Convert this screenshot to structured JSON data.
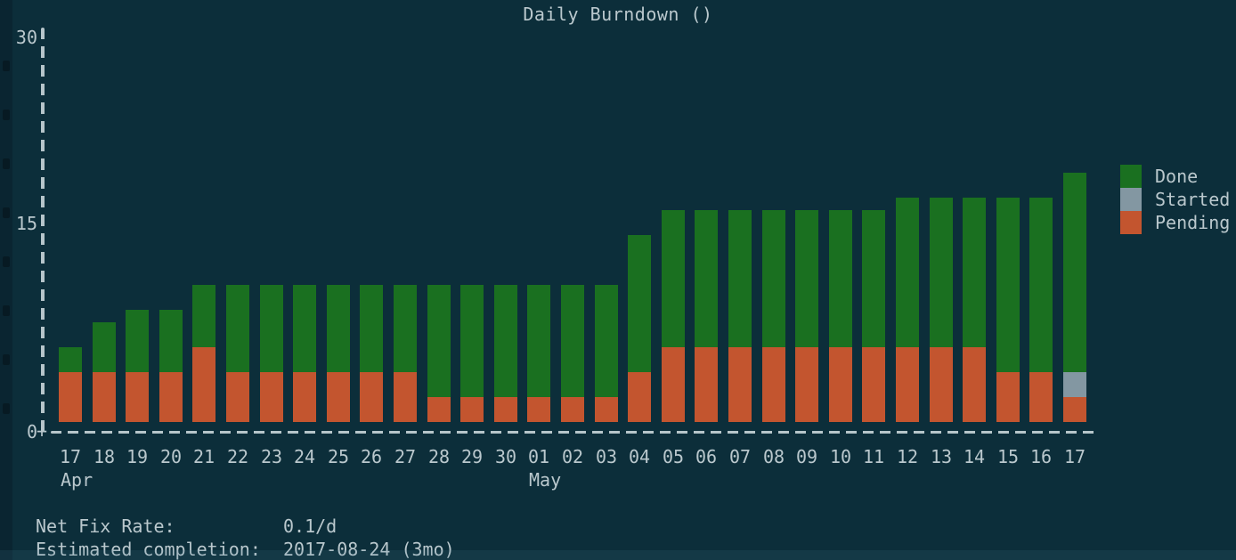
{
  "title": "Daily Burndown ()",
  "legend": {
    "items": [
      {
        "label": "Done",
        "color": "#1a7020"
      },
      {
        "label": "Started",
        "color": "#8397a2"
      },
      {
        "label": "Pending",
        "color": "#c3552f"
      }
    ]
  },
  "y_axis": {
    "ticks": [
      {
        "label": "30",
        "value": 30
      },
      {
        "label": "15",
        "value": 15
      },
      {
        "label": "0",
        "value": 0
      }
    ]
  },
  "x_axis": {
    "day_labels": [
      "17",
      "18",
      "19",
      "20",
      "21",
      "22",
      "23",
      "24",
      "25",
      "26",
      "27",
      "28",
      "29",
      "30",
      "01",
      "02",
      "03",
      "04",
      "05",
      "06",
      "07",
      "08",
      "09",
      "10",
      "11",
      "12",
      "13",
      "14",
      "15",
      "16",
      "17"
    ],
    "month_labels": [
      {
        "label": "Apr",
        "day_index": 0
      },
      {
        "label": "May",
        "day_index": 14
      }
    ]
  },
  "stats": {
    "rows": [
      {
        "label": "Net Fix Rate:",
        "value": "0.1/d"
      },
      {
        "label": "Estimated completion:",
        "value": "2017-08-24 (3mo)"
      }
    ]
  },
  "colors": {
    "background": "#0c2e3a",
    "text": "#bac8cd",
    "axis": "#b6c5ca",
    "done": "#1a7020",
    "started": "#8397a2",
    "pending": "#c3552f"
  },
  "chart_data": {
    "type": "bar",
    "stacked": true,
    "title": "Daily Burndown ()",
    "categories": [
      "Apr 17",
      "Apr 18",
      "Apr 19",
      "Apr 20",
      "Apr 21",
      "Apr 22",
      "Apr 23",
      "Apr 24",
      "Apr 25",
      "Apr 26",
      "Apr 27",
      "Apr 28",
      "Apr 29",
      "Apr 30",
      "May 01",
      "May 02",
      "May 03",
      "May 04",
      "May 05",
      "May 06",
      "May 07",
      "May 08",
      "May 09",
      "May 10",
      "May 11",
      "May 12",
      "May 13",
      "May 14",
      "May 15",
      "May 16",
      "May 17"
    ],
    "series": [
      {
        "name": "Pending",
        "color": "#c3552f",
        "values": [
          4,
          4,
          4,
          4,
          6,
          4,
          4,
          4,
          4,
          4,
          4,
          2,
          2,
          2,
          2,
          2,
          2,
          4,
          6,
          6,
          6,
          6,
          6,
          6,
          6,
          6,
          6,
          6,
          4,
          4,
          2
        ]
      },
      {
        "name": "Started",
        "color": "#8397a2",
        "values": [
          0,
          0,
          0,
          0,
          0,
          0,
          0,
          0,
          0,
          0,
          0,
          0,
          0,
          0,
          0,
          0,
          0,
          0,
          0,
          0,
          0,
          0,
          0,
          0,
          0,
          0,
          0,
          0,
          0,
          0,
          2
        ]
      },
      {
        "name": "Done",
        "color": "#1a7020",
        "values": [
          2,
          4,
          5,
          5,
          5,
          7,
          7,
          7,
          7,
          7,
          7,
          9,
          9,
          9,
          9,
          9,
          9,
          11,
          11,
          11,
          11,
          11,
          11,
          11,
          11,
          12,
          12,
          12,
          14,
          14,
          16
        ]
      }
    ],
    "ylim": [
      0,
      30
    ],
    "yticks": [
      0,
      15,
      30
    ],
    "legend_position": "right",
    "legend_entries": [
      "Done",
      "Started",
      "Pending"
    ],
    "grid": false
  }
}
